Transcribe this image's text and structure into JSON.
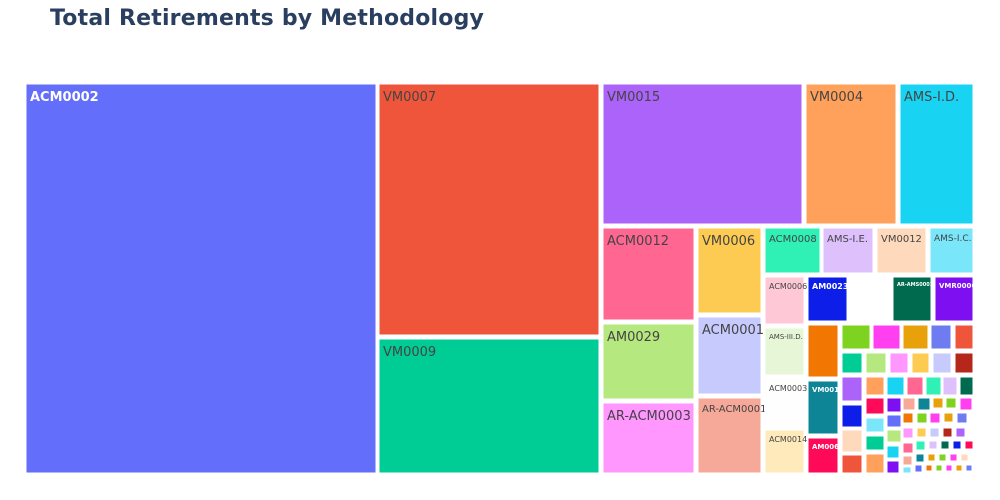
{
  "chart_data": {
    "type": "treemap",
    "title": "Total Retirements by Methodology",
    "labeled": [
      {
        "label": "ACM0002",
        "value": 38.8,
        "color": "#636efa",
        "text_color": "#ffffff"
      },
      {
        "label": "VM0007",
        "value": 17.7,
        "color": "#ef553b",
        "text_color": "#444444"
      },
      {
        "label": "VM0009",
        "value": 9.5,
        "color": "#00cc96",
        "text_color": "#444444"
      },
      {
        "label": "VM0015",
        "value": 7.6,
        "color": "#ab63fa",
        "text_color": "#444444"
      },
      {
        "label": "VM0004",
        "value": 3.9,
        "color": "#ffa15a",
        "text_color": "#444444"
      },
      {
        "label": "AMS-I.D.",
        "value": 3.1,
        "color": "#19d3f3",
        "text_color": "#444444"
      },
      {
        "label": "ACM0012",
        "value": 2.5,
        "color": "#ff6692",
        "text_color": "#444444"
      },
      {
        "label": "AM0029",
        "value": 2.3,
        "color": "#b6e880",
        "text_color": "#444444"
      },
      {
        "label": "AR-ACM0003",
        "value": 2.0,
        "color": "#ff97ff",
        "text_color": "#444444"
      },
      {
        "label": "VM0006",
        "value": 1.6,
        "color": "#fecb52",
        "text_color": "#444444"
      },
      {
        "label": "ACM0001",
        "value": 1.5,
        "color": "#c6cafd",
        "text_color": "#444444"
      },
      {
        "label": "AR-ACM0001",
        "value": 1.2,
        "color": "#f7a999",
        "text_color": "#444444"
      },
      {
        "label": "ACM0008",
        "value": 0.55,
        "color": "#2ff0b5",
        "text_color": "#444444"
      },
      {
        "label": "AMS-I.E.",
        "value": 0.53,
        "color": "#ddc0fc",
        "text_color": "#444444"
      },
      {
        "label": "VM0012",
        "value": 0.5,
        "color": "#fed9bc",
        "text_color": "#444444"
      },
      {
        "label": "AMS-I.C.",
        "value": 0.45,
        "color": "#79e6f9",
        "text_color": "#444444"
      },
      {
        "label": "ACM0006",
        "value": 0.45,
        "color": "#ffc8d6",
        "text_color": "#444444"
      },
      {
        "label": "AMS-III.D.",
        "value": 0.45,
        "color": "#e6f6d6",
        "text_color": "#444444"
      },
      {
        "label": "ACM0003",
        "value": 0.45,
        "color": "#fefefe",
        "text_color": "#444444"
      },
      {
        "label": "ACM0014",
        "value": 0.45,
        "color": "#ffeabc",
        "text_color": "#444444"
      },
      {
        "label": "AM0023",
        "value": 0.3,
        "color": "#0d1ee8",
        "text_color": "#ffffff"
      },
      {
        "label": "VM0010",
        "value": 0.4,
        "color": "#0e8597",
        "text_color": "#ffffff"
      },
      {
        "label": "AM0065",
        "value": 0.25,
        "color": "#ff0a58",
        "text_color": "#ffffff"
      },
      {
        "label": "VMR0006",
        "value": 0.3,
        "color": "#7d0ff0",
        "text_color": "#ffffff"
      },
      {
        "label": "AR-AMS0001",
        "value": 0.3,
        "color": "#006a4e",
        "text_color": "#ffffff"
      }
    ],
    "small_tiles_colors": [
      "#f27602",
      "#7ed321",
      "#ff3ff0",
      "#e8a10a",
      "#6e7cf0",
      "#ef553b",
      "#00cc96",
      "#b6e880",
      "#ff97ff",
      "#fecb52",
      "#c6cafd",
      "#b5271a",
      "#ab63fa",
      "#ffa15a",
      "#19d3f3",
      "#ff6692",
      "#2ff0b5",
      "#ddc0fc",
      "#006a4e",
      "#0d1ee8",
      "#ff0a58",
      "#7d0ff0",
      "#f7a999",
      "#0e8597",
      "#e8a10a",
      "#7ed321",
      "#ff3ff0",
      "#fed9bc",
      "#79e6f9",
      "#636efa"
    ]
  }
}
